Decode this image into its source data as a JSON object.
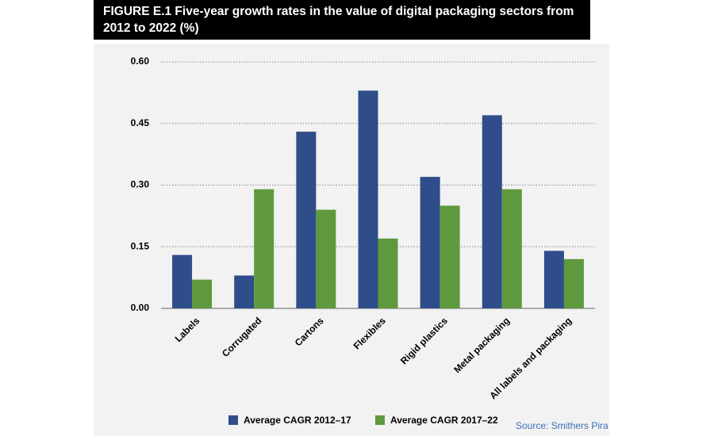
{
  "chart_data": {
    "type": "bar",
    "title": "FIGURE E.1 Five-year growth rates in the value of digital packaging sectors from 2012 to 2022 (%)",
    "categories": [
      "Labels",
      "Corrugated",
      "Cartons",
      "Flexibles",
      "Rigid plastics",
      "Metal packaging",
      "All labels and packaging"
    ],
    "series": [
      {
        "name": "Average CAGR 2012–17",
        "color": "#2e4d8a",
        "values": [
          0.13,
          0.08,
          0.43,
          0.53,
          0.32,
          0.47,
          0.14
        ]
      },
      {
        "name": "Average CAGR 2017–22",
        "color": "#5e9a3d",
        "values": [
          0.07,
          0.29,
          0.24,
          0.17,
          0.25,
          0.29,
          0.12
        ]
      }
    ],
    "ylim": [
      0,
      0.6
    ],
    "yticks": [
      {
        "value": 0,
        "label": "0.00"
      },
      {
        "value": 0.15,
        "label": "0.15"
      },
      {
        "value": 0.3,
        "label": "0.30"
      },
      {
        "value": 0.45,
        "label": "0.45"
      },
      {
        "value": 0.6,
        "label": "0.60"
      }
    ],
    "grid": true,
    "legend": "bottom",
    "source": "Source: Smithers Pira"
  }
}
